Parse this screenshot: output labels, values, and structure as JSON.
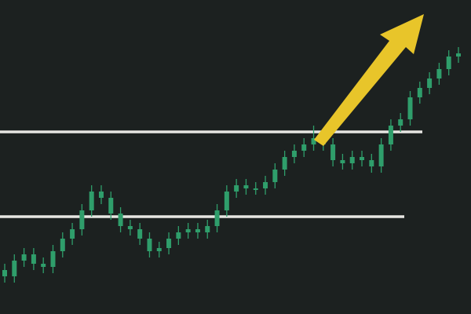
{
  "chart_data": {
    "type": "candlestick",
    "ylim": [
      0,
      100
    ],
    "color": "#2f9e6b",
    "level_color": "#e6e6e2",
    "levels": [
      58,
      31
    ],
    "open": [
      14,
      12,
      17,
      19,
      16,
      15,
      20,
      24,
      27,
      33,
      39,
      37,
      32,
      28,
      27,
      24,
      20,
      21,
      24,
      26,
      27,
      26,
      28,
      33,
      39,
      41,
      40,
      40,
      42,
      46,
      50,
      52,
      54,
      56,
      54,
      49,
      48,
      50,
      49,
      47,
      54,
      60,
      62,
      69,
      72,
      75,
      78,
      82
    ],
    "high": [
      16,
      19,
      21,
      21,
      18,
      22,
      26,
      29,
      35,
      41,
      41,
      39,
      34,
      30,
      29,
      26,
      23,
      26,
      28,
      29,
      29,
      30,
      35,
      41,
      43,
      43,
      42,
      44,
      48,
      52,
      54,
      56,
      60,
      58,
      56,
      51,
      52,
      52,
      51,
      56,
      62,
      64,
      71,
      74,
      77,
      80,
      84,
      85
    ],
    "low": [
      10,
      10,
      15,
      14,
      13,
      13,
      18,
      22,
      25,
      31,
      35,
      30,
      26,
      25,
      22,
      18,
      18,
      19,
      22,
      24,
      24,
      24,
      26,
      31,
      37,
      38,
      38,
      38,
      40,
      44,
      48,
      50,
      52,
      52,
      47,
      46,
      46,
      47,
      45,
      45,
      52,
      58,
      60,
      67,
      70,
      73,
      76,
      80
    ],
    "close": [
      12,
      17,
      19,
      16,
      15,
      20,
      24,
      27,
      33,
      39,
      37,
      32,
      28,
      27,
      24,
      20,
      21,
      24,
      26,
      27,
      26,
      28,
      33,
      39,
      41,
      40,
      40,
      42,
      46,
      50,
      52,
      54,
      56,
      54,
      49,
      48,
      50,
      49,
      47,
      54,
      60,
      62,
      69,
      72,
      75,
      78,
      82,
      83
    ]
  }
}
